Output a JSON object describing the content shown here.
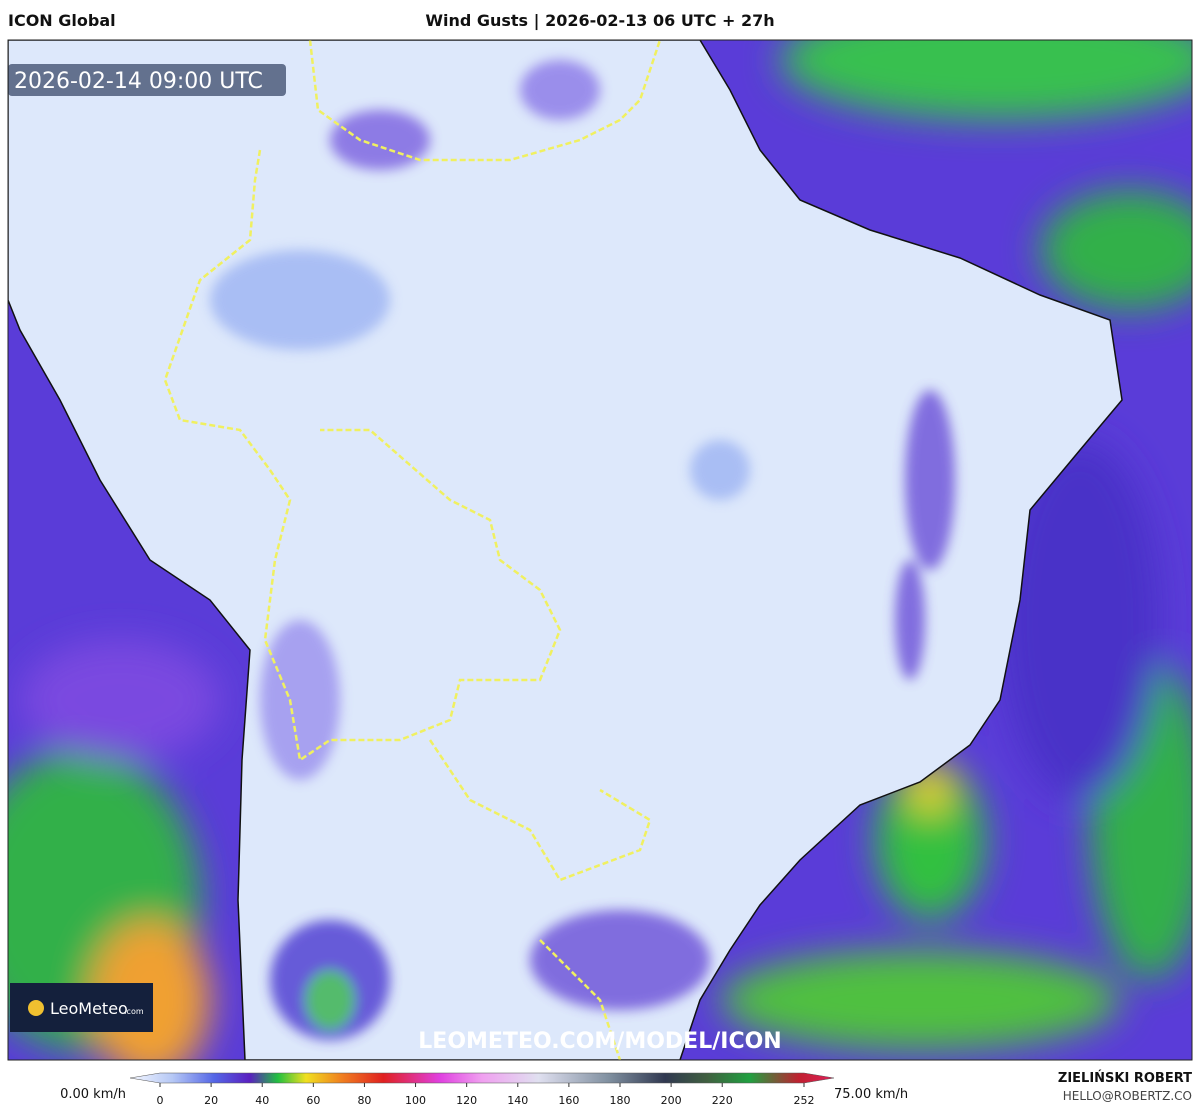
{
  "header": {
    "left": "ICON Global",
    "title": "Wind Gusts | 2026-02-13 06 UTC + 27h"
  },
  "map": {
    "timestamp": "2026-02-14 09:00 UTC",
    "logo_name": "LeoMeteo",
    "logo_suffix": ".com",
    "watermark": "LEOMETEO.COM/MODEL/ICON"
  },
  "colorbar": {
    "min_label": "0.00 km/h",
    "max_label": "75.00 km/h",
    "ticks": [
      0,
      20,
      40,
      60,
      80,
      100,
      120,
      140,
      160,
      180,
      200,
      220,
      252
    ]
  },
  "footer": {
    "author": "ZIELIŃSKI ROBERT",
    "email": "HELLO@ROBERTZ.CO"
  }
}
